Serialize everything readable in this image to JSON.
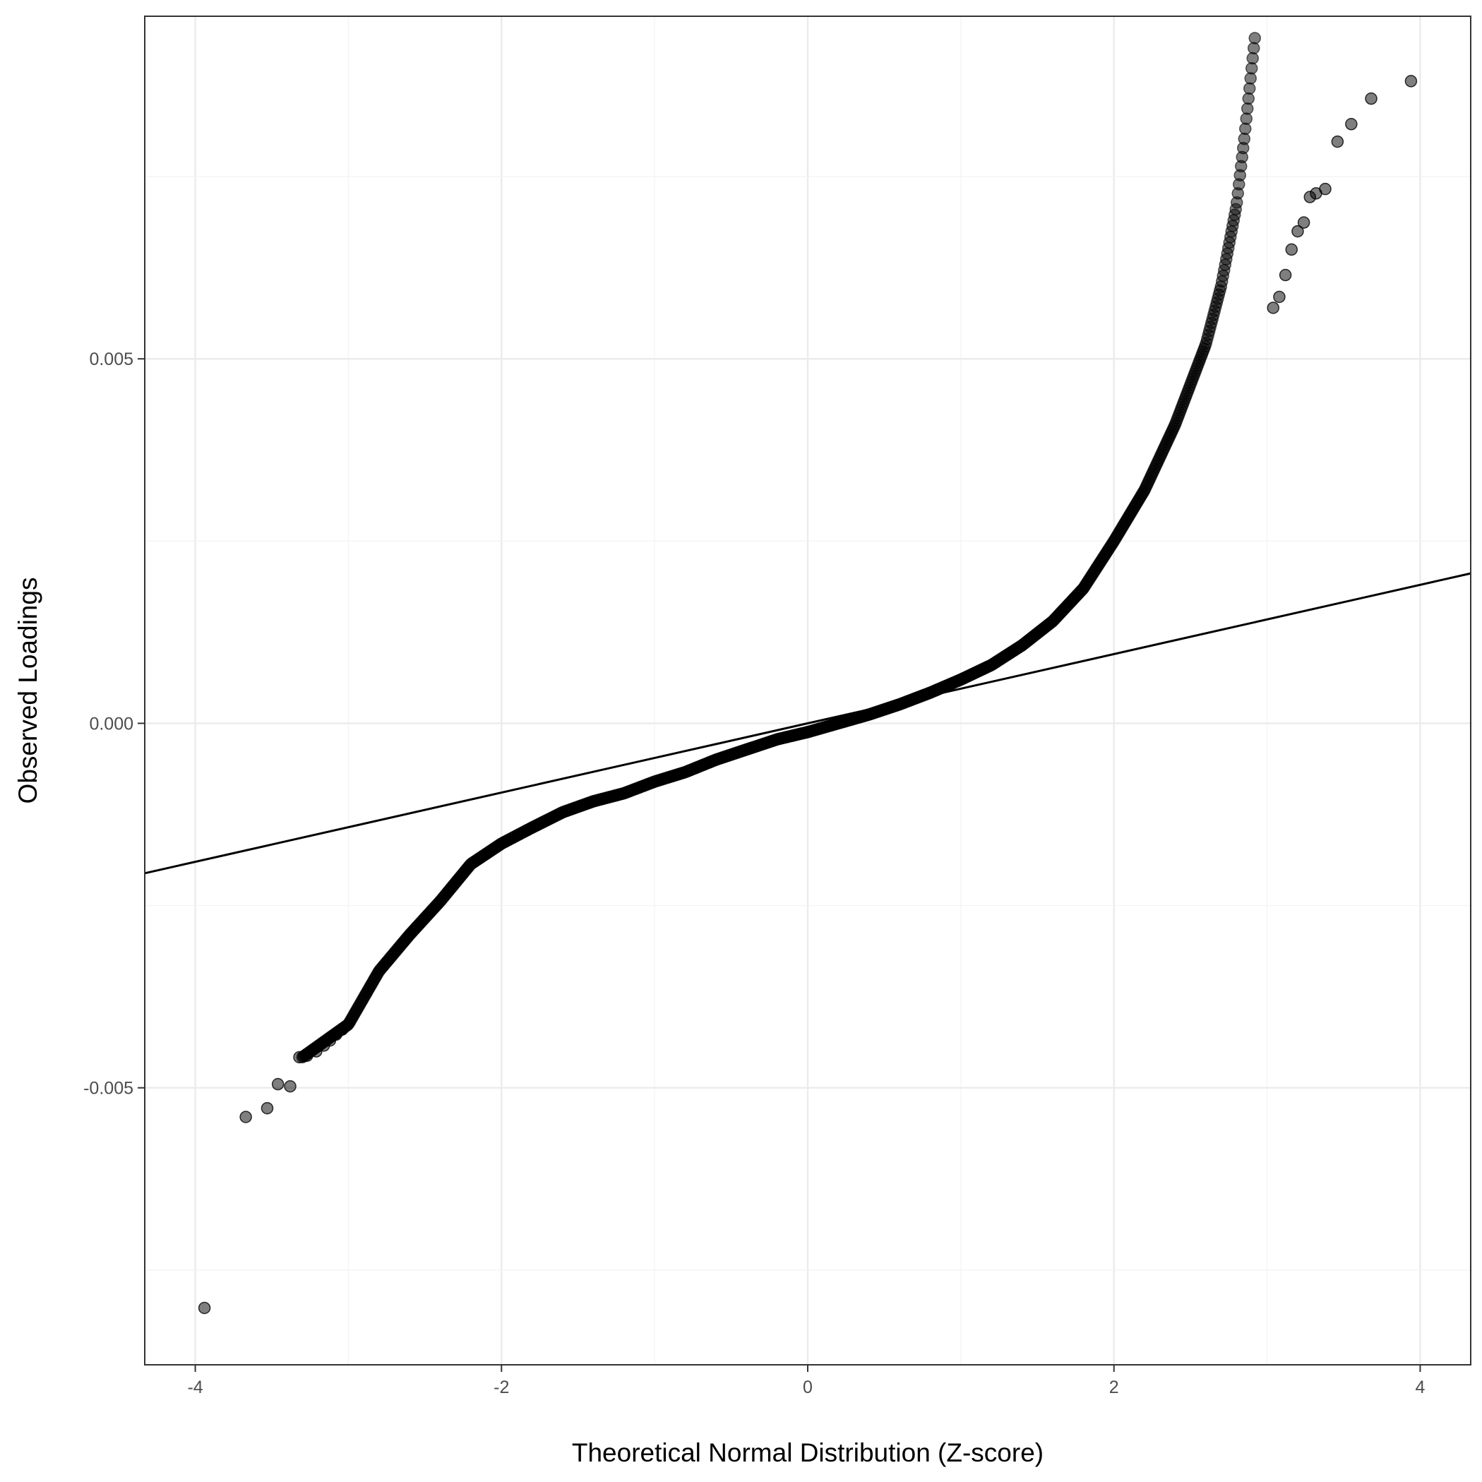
{
  "chart_data": {
    "type": "scatter",
    "title": "",
    "xlabel": "Theoretical Normal Distribution (Z-score)",
    "ylabel": "Observed Loadings",
    "xlim": [
      -4.33,
      4.33
    ],
    "ylim": [
      -0.0088,
      0.0097
    ],
    "x_ticks": [
      -4,
      -2,
      0,
      2,
      4
    ],
    "x_tick_labels": [
      "-4",
      "-2",
      "0",
      "2",
      "4"
    ],
    "y_ticks": [
      -0.005,
      0.0,
      0.005
    ],
    "y_tick_labels": [
      "-0.005",
      "0.000",
      "0.005"
    ],
    "grid": true,
    "theme": "black-and-white",
    "point_color": "#000000",
    "point_opacity": 0.5,
    "line_color": "#000000",
    "reference_line": {
      "intercept": 0.0,
      "slope": 0.000475
    },
    "curve_knots": [
      [
        -3.3,
        -0.00458
      ],
      [
        -3.0,
        -0.00413
      ],
      [
        -2.8,
        -0.0034
      ],
      [
        -2.6,
        -0.0029
      ],
      [
        -2.4,
        -0.00244
      ],
      [
        -2.2,
        -0.00193
      ],
      [
        -2.0,
        -0.00165
      ],
      [
        -1.8,
        -0.00143
      ],
      [
        -1.6,
        -0.00122
      ],
      [
        -1.4,
        -0.00107
      ],
      [
        -1.2,
        -0.00096
      ],
      [
        -1.0,
        -0.0008
      ],
      [
        -0.8,
        -0.00067
      ],
      [
        -0.6,
        -0.0005
      ],
      [
        -0.4,
        -0.00036
      ],
      [
        -0.2,
        -0.00022
      ],
      [
        0.0,
        -0.00012
      ],
      [
        0.2,
        0.0
      ],
      [
        0.4,
        0.00012
      ],
      [
        0.6,
        0.00026
      ],
      [
        0.8,
        0.00042
      ],
      [
        1.0,
        0.0006
      ],
      [
        1.2,
        0.0008
      ],
      [
        1.4,
        0.00107
      ],
      [
        1.6,
        0.0014
      ],
      [
        1.8,
        0.00185
      ],
      [
        2.0,
        0.0025
      ],
      [
        2.2,
        0.0032
      ],
      [
        2.4,
        0.0041
      ],
      [
        2.6,
        0.0052
      ],
      [
        2.7,
        0.006
      ],
      [
        2.8,
        0.0071
      ],
      [
        2.85,
        0.008
      ],
      [
        2.88,
        0.0086
      ],
      [
        2.92,
        0.0094
      ]
    ],
    "tail_points": [
      {
        "x": -3.94,
        "y": -0.00802
      },
      {
        "x": -3.67,
        "y": -0.0054
      },
      {
        "x": -3.53,
        "y": -0.00528
      },
      {
        "x": -3.46,
        "y": -0.00495
      },
      {
        "x": -3.38,
        "y": -0.00498
      },
      {
        "x": -3.32,
        "y": -0.00458
      },
      {
        "x": -3.27,
        "y": -0.00456
      },
      {
        "x": -3.21,
        "y": -0.0045
      },
      {
        "x": -3.16,
        "y": -0.00442
      },
      {
        "x": -3.12,
        "y": -0.00435
      },
      {
        "x": -3.08,
        "y": -0.00427
      },
      {
        "x": -3.04,
        "y": -0.0042
      },
      {
        "x": 3.04,
        "y": 0.0057
      },
      {
        "x": 3.08,
        "y": 0.00585
      },
      {
        "x": 3.12,
        "y": 0.00615
      },
      {
        "x": 3.16,
        "y": 0.0065
      },
      {
        "x": 3.2,
        "y": 0.00675
      },
      {
        "x": 3.24,
        "y": 0.00687
      },
      {
        "x": 3.28,
        "y": 0.00722
      },
      {
        "x": 3.32,
        "y": 0.00727
      },
      {
        "x": 3.38,
        "y": 0.00733
      },
      {
        "x": 3.46,
        "y": 0.00798
      },
      {
        "x": 3.55,
        "y": 0.00822
      },
      {
        "x": 3.68,
        "y": 0.00857
      },
      {
        "x": 3.94,
        "y": 0.00881
      }
    ]
  }
}
